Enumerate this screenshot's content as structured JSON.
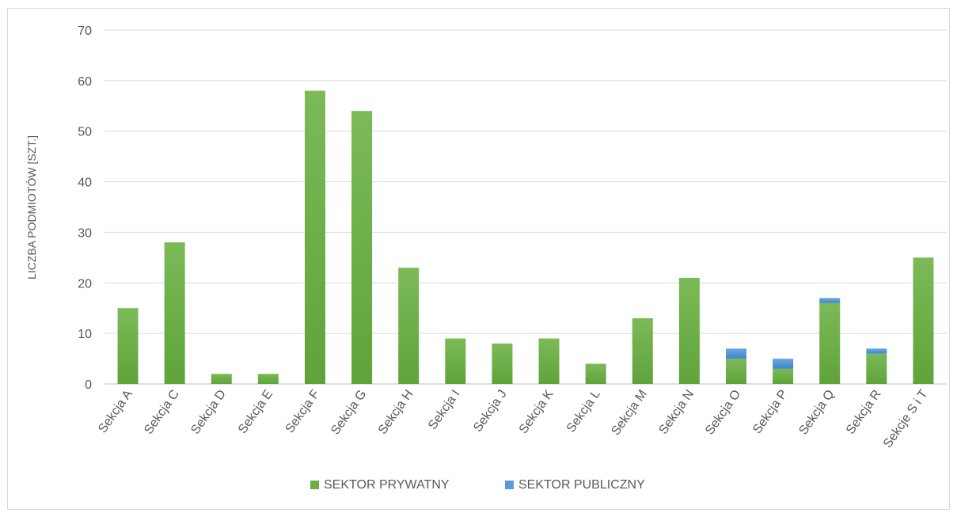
{
  "chart_data": {
    "type": "bar",
    "stacked": true,
    "title": "",
    "xlabel": "",
    "ylabel": "LICZBA PODMIOTÓW [SZT.]",
    "ylim": [
      0,
      70
    ],
    "yticks": [
      0,
      10,
      20,
      30,
      40,
      50,
      60,
      70
    ],
    "grid": true,
    "legend_position": "bottom",
    "categories": [
      "Sekcja A",
      "Sekcja C",
      "Sekcja D",
      "Sekcja E",
      "Sekcja F",
      "Sekcja G",
      "Sekcja H",
      "Sekcja I",
      "Sekcja J",
      "Sekcja K",
      "Sekcja L",
      "Sekcja M",
      "Sekcja N",
      "Sekcja O",
      "Sekcja P",
      "Sekcja Q",
      "Sekcja R",
      "Sekcje S i T"
    ],
    "series": [
      {
        "name": "SEKTOR PRYWATNY",
        "color": "#70ad47",
        "values": [
          15,
          28,
          2,
          2,
          58,
          54,
          23,
          9,
          8,
          9,
          4,
          13,
          21,
          5,
          3,
          16,
          6,
          25
        ]
      },
      {
        "name": "SEKTOR PUBLICZNY",
        "color": "#5b9bd5",
        "values": [
          0,
          0,
          0,
          0,
          0,
          0,
          0,
          0,
          0,
          0,
          0,
          0,
          0,
          2,
          2,
          1,
          1,
          0
        ]
      }
    ]
  }
}
